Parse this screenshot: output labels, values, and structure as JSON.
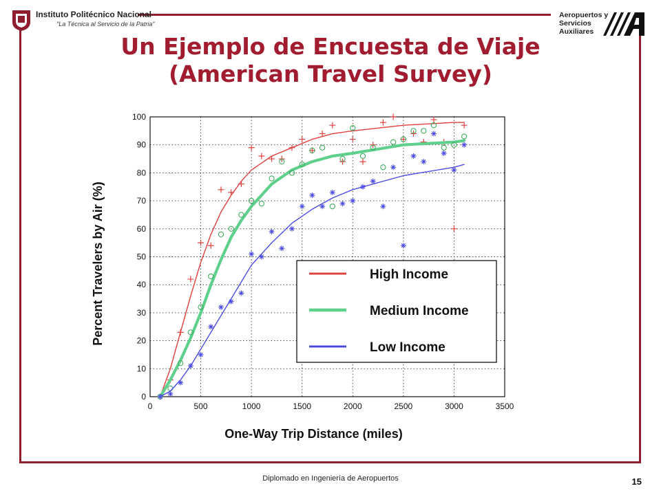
{
  "header": {
    "institution": "Instituto Politécnico Nacional",
    "motto": "\"La Técnica al Servicio de la Patria\"",
    "brand_lines": [
      "Aeropuertos y",
      "Servicios",
      "Auxiliares"
    ]
  },
  "slide": {
    "title_line1": "Un Ejemplo de Encuesta de Viaje",
    "title_line2": "(American Travel Survey)",
    "footer": "Diplomado en Ingeniería de Aeropuertos",
    "page_number": "15"
  },
  "colors": {
    "frame": "#8f1f2e",
    "title": "#a01c2e",
    "high": "#e0403c",
    "medium": "#5fd08c",
    "low": "#4b4be6"
  },
  "chart_data": {
    "type": "scatter",
    "xlabel": "One-Way Trip Distance (miles)",
    "ylabel": "Percent Travelers by Air (%)",
    "xlim": [
      0,
      3500
    ],
    "ylim": [
      0,
      100
    ],
    "xticks": [
      "0",
      "500",
      "1000",
      "1500",
      "2000",
      "2500",
      "3000",
      "3500"
    ],
    "yticks": [
      "0",
      "10",
      "20",
      "30",
      "40",
      "50",
      "60",
      "70",
      "80",
      "90",
      "100"
    ],
    "grid": true,
    "legend_position": "bottom-right",
    "series": [
      {
        "name": "High Income",
        "marker": "plus",
        "color": "#e0403c",
        "points": [
          [
            100,
            0
          ],
          [
            200,
            6
          ],
          [
            300,
            23
          ],
          [
            400,
            42
          ],
          [
            500,
            55
          ],
          [
            600,
            54
          ],
          [
            700,
            74
          ],
          [
            800,
            73
          ],
          [
            900,
            76
          ],
          [
            1000,
            89
          ],
          [
            1100,
            86
          ],
          [
            1200,
            85
          ],
          [
            1300,
            85
          ],
          [
            1400,
            89
          ],
          [
            1500,
            92
          ],
          [
            1600,
            88
          ],
          [
            1700,
            94
          ],
          [
            1800,
            97
          ],
          [
            1900,
            84
          ],
          [
            2000,
            92
          ],
          [
            2100,
            84
          ],
          [
            2200,
            90
          ],
          [
            2300,
            98
          ],
          [
            2400,
            100
          ],
          [
            2500,
            92
          ],
          [
            2600,
            94
          ],
          [
            2700,
            91
          ],
          [
            2800,
            99
          ],
          [
            2900,
            91
          ],
          [
            3000,
            60
          ],
          [
            3100,
            97
          ]
        ],
        "fit": [
          [
            100,
            0
          ],
          [
            200,
            10
          ],
          [
            300,
            23
          ],
          [
            400,
            36
          ],
          [
            500,
            48
          ],
          [
            600,
            58
          ],
          [
            700,
            66
          ],
          [
            800,
            72
          ],
          [
            900,
            77
          ],
          [
            1000,
            81
          ],
          [
            1200,
            86
          ],
          [
            1400,
            89
          ],
          [
            1600,
            92
          ],
          [
            1800,
            94
          ],
          [
            2000,
            95
          ],
          [
            2500,
            97
          ],
          [
            3000,
            98
          ],
          [
            3100,
            98
          ]
        ]
      },
      {
        "name": "Medium Income",
        "marker": "circle",
        "color": "#5fd08c",
        "points": [
          [
            100,
            0
          ],
          [
            200,
            3
          ],
          [
            300,
            12
          ],
          [
            400,
            23
          ],
          [
            500,
            32
          ],
          [
            600,
            43
          ],
          [
            700,
            58
          ],
          [
            800,
            60
          ],
          [
            900,
            65
          ],
          [
            1000,
            70
          ],
          [
            1100,
            69
          ],
          [
            1200,
            78
          ],
          [
            1300,
            84
          ],
          [
            1400,
            80
          ],
          [
            1500,
            83
          ],
          [
            1600,
            88
          ],
          [
            1700,
            89
          ],
          [
            1800,
            68
          ],
          [
            1900,
            85
          ],
          [
            2000,
            96
          ],
          [
            2100,
            86
          ],
          [
            2200,
            89
          ],
          [
            2300,
            82
          ],
          [
            2400,
            91
          ],
          [
            2500,
            92
          ],
          [
            2600,
            95
          ],
          [
            2700,
            95
          ],
          [
            2800,
            97
          ],
          [
            2900,
            89
          ],
          [
            3000,
            90
          ],
          [
            3100,
            93
          ]
        ],
        "fit": [
          [
            100,
            0
          ],
          [
            200,
            6
          ],
          [
            300,
            13
          ],
          [
            400,
            21
          ],
          [
            500,
            30
          ],
          [
            600,
            40
          ],
          [
            700,
            49
          ],
          [
            800,
            57
          ],
          [
            900,
            63
          ],
          [
            1000,
            68
          ],
          [
            1200,
            76
          ],
          [
            1400,
            81
          ],
          [
            1600,
            84
          ],
          [
            1800,
            86
          ],
          [
            2000,
            87
          ],
          [
            2500,
            90
          ],
          [
            3000,
            91
          ],
          [
            3100,
            91.5
          ]
        ]
      },
      {
        "name": "Low Income",
        "marker": "star",
        "color": "#4b4be6",
        "points": [
          [
            100,
            0
          ],
          [
            200,
            1
          ],
          [
            300,
            5
          ],
          [
            400,
            11
          ],
          [
            500,
            15
          ],
          [
            600,
            25
          ],
          [
            700,
            32
          ],
          [
            800,
            34
          ],
          [
            900,
            37
          ],
          [
            1000,
            51
          ],
          [
            1100,
            50
          ],
          [
            1200,
            59
          ],
          [
            1300,
            53
          ],
          [
            1400,
            60
          ],
          [
            1500,
            68
          ],
          [
            1600,
            72
          ],
          [
            1700,
            68
          ],
          [
            1800,
            73
          ],
          [
            1900,
            69
          ],
          [
            2000,
            70
          ],
          [
            2100,
            75
          ],
          [
            2200,
            77
          ],
          [
            2300,
            68
          ],
          [
            2400,
            82
          ],
          [
            2500,
            54
          ],
          [
            2600,
            86
          ],
          [
            2700,
            84
          ],
          [
            2800,
            94
          ],
          [
            2900,
            87
          ],
          [
            3000,
            81
          ],
          [
            3100,
            90
          ]
        ],
        "fit": [
          [
            100,
            0
          ],
          [
            200,
            2
          ],
          [
            300,
            6
          ],
          [
            400,
            11
          ],
          [
            500,
            17
          ],
          [
            600,
            23
          ],
          [
            700,
            29
          ],
          [
            800,
            35
          ],
          [
            900,
            41
          ],
          [
            1000,
            47
          ],
          [
            1200,
            55
          ],
          [
            1400,
            62
          ],
          [
            1600,
            67
          ],
          [
            1800,
            71
          ],
          [
            2000,
            74
          ],
          [
            2500,
            79
          ],
          [
            3000,
            82
          ],
          [
            3100,
            83
          ]
        ]
      }
    ]
  }
}
